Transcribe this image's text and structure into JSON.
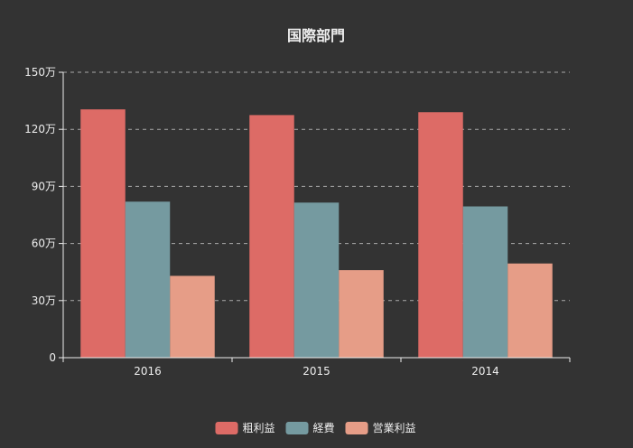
{
  "chart_data": {
    "type": "bar",
    "title": "国際部門",
    "categories": [
      "2016",
      "2015",
      "2014"
    ],
    "series": [
      {
        "name": "粗利益",
        "color": "#dd6b66",
        "values": [
          1305000,
          1275000,
          1290000
        ]
      },
      {
        "name": "経費",
        "color": "#759aa0",
        "values": [
          820000,
          815000,
          795000
        ]
      },
      {
        "name": "営業利益",
        "color": "#e69d87",
        "values": [
          430000,
          460000,
          495000
        ]
      }
    ],
    "ylim": [
      0,
      1500000
    ],
    "yticks": [
      0,
      300000,
      600000,
      900000,
      1200000,
      1500000
    ],
    "ytick_labels": [
      "0",
      "30万",
      "60万",
      "90万",
      "120万",
      "150万"
    ],
    "grid": true,
    "grid_style": "dashed",
    "legend_position": "bottom"
  },
  "colors": {
    "background": "#333333",
    "text": "#eeeeee",
    "axis": "#eeeeee",
    "grid": "#aaaaaa"
  }
}
